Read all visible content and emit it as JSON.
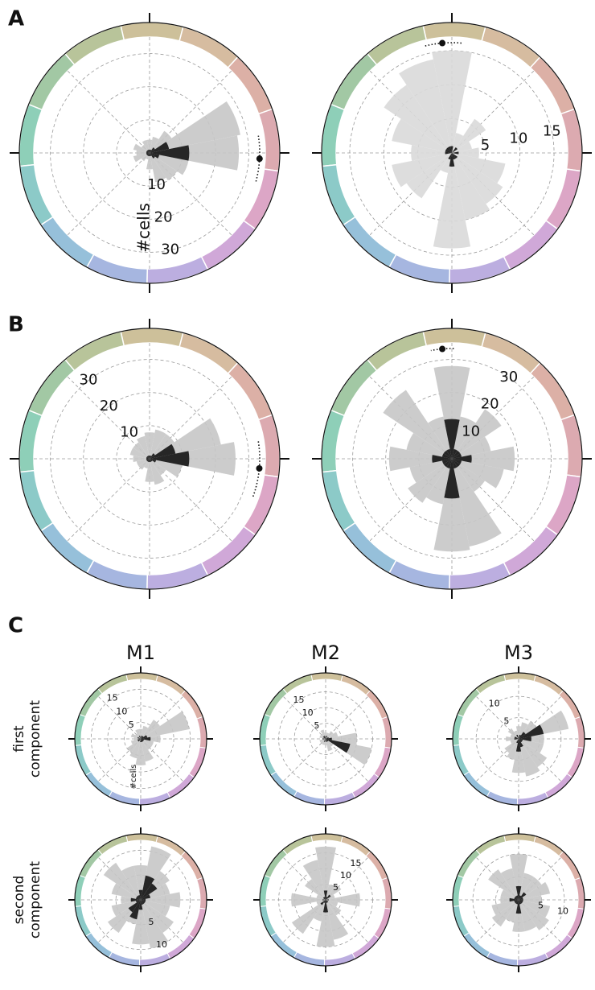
{
  "panel_labels": [
    "A",
    "B",
    "C"
  ],
  "column_labels": [
    "M1",
    "M2",
    "M3"
  ],
  "row_labels": [
    "first component",
    "second component"
  ],
  "chart_data": [
    {
      "type": "polar_bar",
      "x": [
        0,
        22.5,
        45,
        67.5,
        90,
        112.5,
        135,
        157.5,
        180,
        202.5,
        225,
        247.5,
        270,
        292.5,
        315,
        337.5
      ],
      "series": [
        {
          "color": "#c6c6c6",
          "values": [
            27,
            28,
            8,
            5,
            4,
            4,
            3,
            5,
            4,
            5,
            3,
            2,
            5,
            9,
            10,
            12
          ]
        },
        {
          "color": "#262626",
          "values": [
            12,
            6,
            2,
            1,
            1,
            1,
            1,
            1,
            1,
            1,
            1,
            1,
            1,
            1,
            2,
            3
          ]
        }
      ],
      "ylim": [
        0,
        35
      ],
      "yticks": [
        10,
        20,
        30
      ],
      "ylabel": "#cells",
      "mean": {
        "angle": -3,
        "spread": 12
      }
    },
    {
      "type": "polar_bar",
      "x": [
        0,
        22.5,
        45,
        67.5,
        90,
        112.5,
        135,
        157.5,
        180,
        202.5,
        225,
        247.5,
        270,
        292.5,
        315,
        337.5
      ],
      "series": [
        {
          "color": "#d9d9d9",
          "values": [
            4,
            3,
            6,
            3,
            15,
            14,
            12,
            9,
            6,
            9,
            8,
            3,
            14,
            10,
            9,
            8
          ]
        },
        {
          "color": "#262626",
          "values": [
            1,
            0,
            1,
            0,
            1,
            1,
            1,
            1,
            1,
            0,
            0,
            1,
            2,
            1,
            1,
            0
          ]
        }
      ],
      "ylim": [
        0,
        17
      ],
      "yticks": [
        5,
        10,
        15
      ],
      "mean": {
        "angle": 95,
        "spread": 10
      }
    },
    {
      "type": "polar_bar",
      "x": [
        0,
        22.5,
        45,
        67.5,
        90,
        112.5,
        135,
        157.5,
        180,
        202.5,
        225,
        247.5,
        270,
        292.5,
        315,
        337.5
      ],
      "series": [
        {
          "color": "#c6c6c6",
          "values": [
            26,
            22,
            9,
            9,
            8,
            7,
            6,
            6,
            5,
            4,
            4,
            3,
            7,
            8,
            6,
            10
          ]
        },
        {
          "color": "#262626",
          "values": [
            12,
            8,
            2,
            1,
            1,
            1,
            1,
            1,
            1,
            1,
            1,
            1,
            1,
            1,
            1,
            2
          ]
        }
      ],
      "ylim": [
        0,
        35
      ],
      "yticks": [
        10,
        20,
        30
      ],
      "mean": {
        "angle": -5,
        "spread": 15
      }
    },
    {
      "type": "polar_bar",
      "x": [
        0,
        22.5,
        45,
        67.5,
        90,
        112.5,
        135,
        157.5,
        180,
        202.5,
        225,
        247.5,
        270,
        292.5,
        315,
        337.5
      ],
      "series": [
        {
          "color": "#c6c6c6",
          "values": [
            19,
            12,
            18,
            13,
            28,
            13,
            25,
            14,
            19,
            13,
            16,
            14,
            28,
            27,
            12,
            16
          ]
        },
        {
          "color": "#262626",
          "values": [
            6,
            3,
            3,
            3,
            12,
            3,
            3,
            3,
            6,
            3,
            3,
            3,
            12,
            3,
            3,
            3
          ]
        }
      ],
      "ylim": [
        0,
        35
      ],
      "yticks": [
        10,
        20,
        30
      ],
      "mean": {
        "angle": 95,
        "spread": 6
      }
    },
    {
      "type": "polar_bar",
      "x": [
        0,
        22.5,
        45,
        67.5,
        90,
        112.5,
        135,
        157.5,
        180,
        202.5,
        225,
        247.5,
        270,
        292.5,
        315,
        337.5
      ],
      "series": [
        {
          "color": "#c6c6c6",
          "values": [
            6,
            15,
            7,
            4,
            3,
            3,
            2,
            3,
            2,
            3,
            5,
            6,
            8,
            7,
            4,
            4
          ]
        },
        {
          "color": "#262626",
          "values": [
            3,
            2,
            1,
            1,
            0,
            1,
            0,
            1,
            0,
            1,
            1,
            0,
            1,
            1,
            1,
            1
          ]
        }
      ],
      "ylim": [
        0,
        18
      ],
      "yticks": [
        5,
        10,
        15
      ],
      "ylabel": "#cells"
    },
    {
      "type": "polar_bar",
      "x": [
        0,
        22.5,
        45,
        67.5,
        90,
        112.5,
        135,
        157.5,
        180,
        202.5,
        225,
        247.5,
        270,
        292.5,
        315,
        337.5
      ],
      "series": [
        {
          "color": "#c6c6c6",
          "values": [
            10,
            4,
            3,
            2,
            2,
            3,
            2,
            2,
            1,
            2,
            2,
            2,
            2,
            4,
            3,
            15
          ]
        },
        {
          "color": "#262626",
          "values": [
            2,
            1,
            0,
            1,
            0,
            1,
            1,
            0,
            1,
            0,
            0,
            1,
            0,
            1,
            1,
            8
          ]
        }
      ],
      "ylim": [
        0,
        19
      ],
      "yticks": [
        5,
        10,
        15
      ]
    },
    {
      "type": "polar_bar",
      "x": [
        0,
        22.5,
        45,
        67.5,
        90,
        112.5,
        135,
        157.5,
        180,
        202.5,
        225,
        247.5,
        270,
        292.5,
        315,
        337.5
      ],
      "series": [
        {
          "color": "#c6c6c6",
          "values": [
            6,
            12,
            5,
            4,
            3,
            2,
            3,
            2,
            3,
            2,
            4,
            5,
            8,
            9,
            8,
            6
          ]
        },
        {
          "color": "#262626",
          "values": [
            3,
            6,
            2,
            1,
            0,
            1,
            0,
            1,
            1,
            0,
            0,
            1,
            3,
            2,
            1,
            1
          ]
        }
      ],
      "ylim": [
        0,
        14
      ],
      "yticks": [
        5,
        10
      ]
    },
    {
      "type": "polar_bar",
      "x": [
        0,
        22.5,
        45,
        67.5,
        90,
        112.5,
        135,
        157.5,
        180,
        202.5,
        225,
        247.5,
        270,
        292.5,
        315,
        337.5
      ],
      "series": [
        {
          "color": "#c6c6c6",
          "values": [
            8,
            6,
            7,
            11,
            7,
            7,
            9,
            6,
            4,
            6,
            8,
            5,
            9,
            10,
            8,
            6
          ]
        },
        {
          "color": "#262626",
          "values": [
            1,
            2,
            4,
            5,
            2,
            1,
            1,
            1,
            2,
            1,
            3,
            4,
            2,
            1,
            1,
            1
          ]
        }
      ],
      "ylim": [
        0,
        12
      ],
      "yticks": [
        5,
        10
      ]
    },
    {
      "type": "polar_bar",
      "x": [
        0,
        22.5,
        45,
        67.5,
        90,
        112.5,
        135,
        157.5,
        180,
        202.5,
        225,
        247.5,
        270,
        292.5,
        315,
        337.5
      ],
      "series": [
        {
          "color": "#c6c6c6",
          "values": [
            11,
            3,
            6,
            5,
            17,
            13,
            8,
            3,
            11,
            3,
            13,
            7,
            15,
            13,
            6,
            4
          ]
        },
        {
          "color": "#262626",
          "values": [
            1,
            0,
            2,
            1,
            3,
            1,
            1,
            0,
            1,
            0,
            2,
            1,
            4,
            1,
            1,
            0
          ]
        }
      ],
      "ylim": [
        0,
        19
      ],
      "yticks": [
        5,
        10,
        15
      ]
    },
    {
      "type": "polar_bar",
      "x": [
        0,
        22.5,
        45,
        67.5,
        90,
        112.5,
        135,
        157.5,
        180,
        202.5,
        225,
        247.5,
        270,
        292.5,
        315,
        337.5
      ],
      "series": [
        {
          "color": "#c6c6c6",
          "values": [
            5,
            7,
            6,
            6,
            10,
            7,
            8,
            4,
            4,
            6,
            7,
            5,
            7,
            7,
            8,
            7
          ]
        },
        {
          "color": "#262626",
          "values": [
            1,
            1,
            2,
            1,
            3,
            1,
            1,
            1,
            2,
            1,
            1,
            1,
            3,
            1,
            1,
            1
          ]
        }
      ],
      "ylim": [
        0,
        13
      ],
      "yticks": [
        5,
        10
      ]
    }
  ]
}
